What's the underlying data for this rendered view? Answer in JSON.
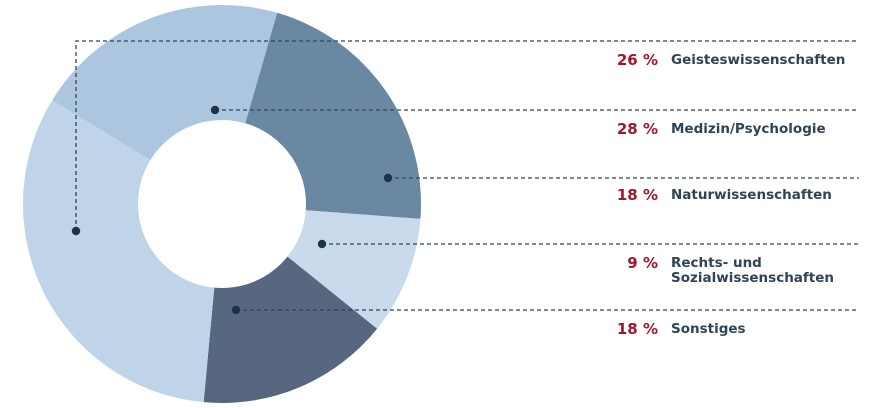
{
  "chart_data": {
    "type": "pie",
    "variant": "donut",
    "legend_placement": "right",
    "slices": [
      {
        "label": "Geisteswissenschaften",
        "percent_label": "26 %",
        "value": 26,
        "color": "#adc6e0"
      },
      {
        "label": "Medizin/Psychologie",
        "percent_label": "28 %",
        "value": 28,
        "color": "#bfd4e9"
      },
      {
        "label": "Naturwissenschaften",
        "percent_label": "18 %",
        "value": 18,
        "color": "#6b88a3"
      },
      {
        "label": "Rechts- und\nSozialwissenschaften",
        "percent_label": "9 %",
        "value": 9,
        "color": "#c9daed"
      },
      {
        "label": "Sonstiges",
        "percent_label": "18 %",
        "value": 18,
        "color": "#56677f"
      }
    ]
  }
}
